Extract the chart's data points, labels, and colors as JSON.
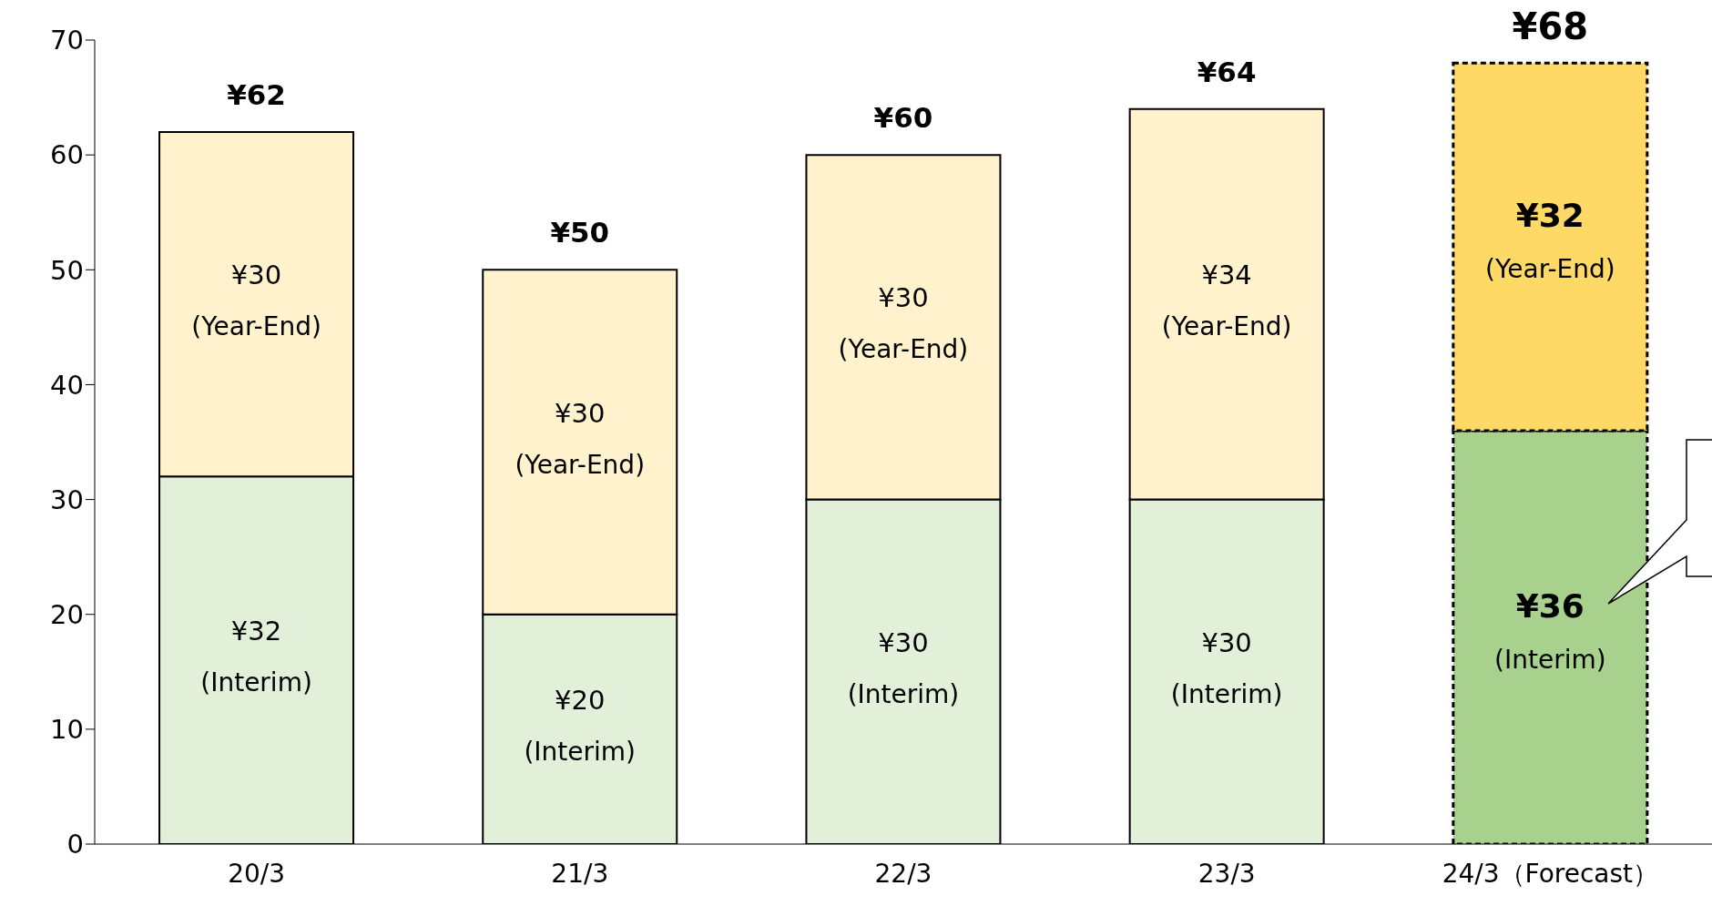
{
  "chart_data": {
    "type": "bar",
    "stacked": true,
    "categories": [
      "20/3",
      "21/3",
      "22/3",
      "23/3",
      "24/3（Forecast）"
    ],
    "series": [
      {
        "name": "(Interim)",
        "color": "#e2efd9",
        "colors": [
          "#e2efd9",
          "#e2efd9",
          "#e2efd9",
          "#e2efd9",
          "#a9d18e"
        ],
        "values": [
          32,
          20,
          30,
          30,
          36
        ],
        "value_labels": [
          "¥32",
          "¥20",
          "¥30",
          "¥30",
          "¥36"
        ]
      },
      {
        "name": "(Year-End)",
        "color": "#fff2cc",
        "colors": [
          "#fff2cc",
          "#fff2cc",
          "#fff2cc",
          "#fff2cc",
          "#ffd966"
        ],
        "values": [
          30,
          30,
          30,
          34,
          32
        ],
        "value_labels": [
          "¥30",
          "¥30",
          "¥30",
          "¥34",
          "¥32"
        ]
      }
    ],
    "totals": [
      "¥62",
      "¥50",
      "¥60",
      "¥64",
      "¥68"
    ],
    "ylim": [
      0,
      70
    ],
    "yticks": [
      0,
      10,
      20,
      30,
      40,
      50,
      60,
      70
    ],
    "grid": false,
    "legend": false
  }
}
